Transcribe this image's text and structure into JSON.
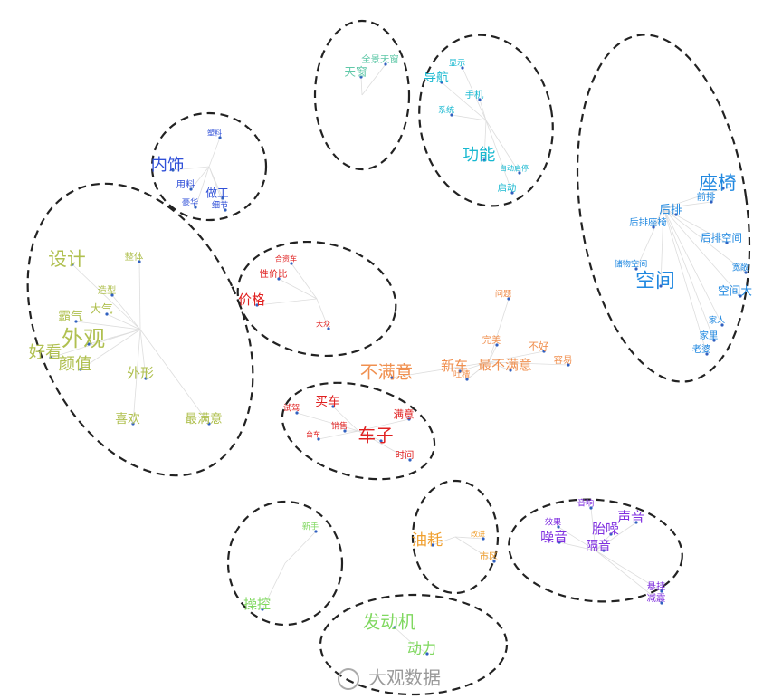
{
  "clusters": [
    {
      "color": "#60c8a8",
      "words": [
        "全景天窗",
        "天窗"
      ]
    },
    {
      "color": "#18b8d0",
      "words": [
        "导航",
        "显示",
        "手机",
        "系统",
        "功能",
        "自动启停",
        "启动"
      ]
    },
    {
      "color": "#2088e0",
      "words": [
        "座椅",
        "前排",
        "后排",
        "后排座椅",
        "后排空间",
        "储物空间",
        "宽敞",
        "空间",
        "空间大",
        "家人",
        "家里",
        "老婆"
      ]
    },
    {
      "color": "#3050d8",
      "words": [
        "内饰",
        "塑料",
        "用料",
        "做工",
        "豪华",
        "细节"
      ]
    },
    {
      "color": "#b0c050",
      "words": [
        "设计",
        "整体",
        "造型",
        "大气",
        "霸气",
        "外观",
        "好看",
        "颜值",
        "外形",
        "喜欢",
        "最满意"
      ]
    },
    {
      "color": "#e02020",
      "words": [
        "合资车",
        "性价比",
        "价格",
        "大众"
      ]
    },
    {
      "color": "#e02020",
      "words": [
        "买车",
        "满意",
        "试驾",
        "销售",
        "台车",
        "车子",
        "时间"
      ]
    },
    {
      "color": "#f0a030",
      "words": [
        "油耗",
        "改进",
        "市区"
      ]
    },
    {
      "color": "#8030e0",
      "words": [
        "音响",
        "声音",
        "效果",
        "胎噪",
        "噪音",
        "隔音",
        "悬挂",
        "减震"
      ]
    },
    {
      "color": "#80d860",
      "words": [
        "新手",
        "操控"
      ]
    },
    {
      "color": "#80d860",
      "words": [
        "发动机",
        "动力"
      ]
    }
  ],
  "loose_words": {
    "color": "#f09050",
    "words": [
      "问题",
      "完美",
      "不好",
      "容易",
      "新车",
      "最不满意",
      "不满意",
      "吐槽"
    ]
  },
  "watermark": "大观数据"
}
